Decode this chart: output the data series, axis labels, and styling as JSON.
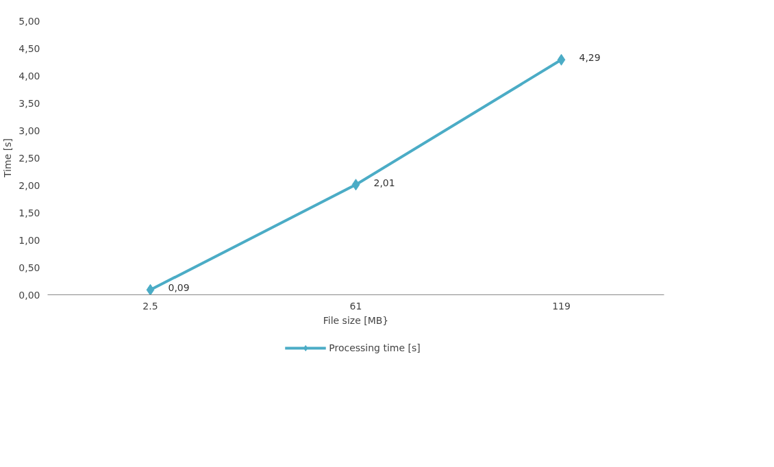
{
  "chart_data": {
    "type": "line",
    "categories": [
      "2.5",
      "61",
      "119"
    ],
    "series": [
      {
        "name": "Processing time [s]",
        "color": "#4bacc6",
        "values": [
          0.09,
          2.01,
          4.29
        ],
        "value_labels": [
          "0,09",
          "2,01",
          "4,29"
        ]
      }
    ],
    "xlabel": "File size [MB}",
    "ylabel": "Time [s]",
    "ylim": [
      0,
      5
    ],
    "yticks": [
      {
        "value": 0,
        "label": "0,00"
      },
      {
        "value": 0.5,
        "label": "0,50"
      },
      {
        "value": 1,
        "label": "1,00"
      },
      {
        "value": 1.5,
        "label": "1,50"
      },
      {
        "value": 2,
        "label": "2,00"
      },
      {
        "value": 2.5,
        "label": "2,50"
      },
      {
        "value": 3,
        "label": "3,00"
      },
      {
        "value": 3.5,
        "label": "3,50"
      },
      {
        "value": 4,
        "label": "4,00"
      },
      {
        "value": 4.5,
        "label": "4,50"
      },
      {
        "value": 5,
        "label": "5,00"
      }
    ],
    "grid": false,
    "legend": "bottom",
    "marker": "diamond",
    "line_style": "solid"
  }
}
